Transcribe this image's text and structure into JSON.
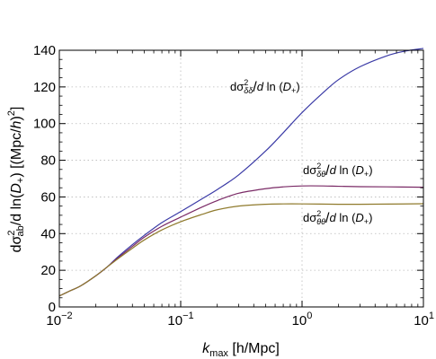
{
  "chart_data": {
    "type": "line",
    "x_scale": "log",
    "y_scale": "linear",
    "xlim": [
      0.01,
      10
    ],
    "ylim": [
      0,
      140
    ],
    "grid": true,
    "x_ticks": [
      {
        "value": 0.01,
        "base": "10",
        "exp": "−2"
      },
      {
        "value": 0.1,
        "base": "10",
        "exp": "−1"
      },
      {
        "value": 1,
        "base": "10",
        "exp": "0"
      },
      {
        "value": 10,
        "base": "10",
        "exp": "1"
      }
    ],
    "y_ticks": [
      0,
      20,
      40,
      60,
      80,
      100,
      120,
      140
    ],
    "xlabel": {
      "main": "k",
      "sub": "max",
      "unit": " [h/Mpc]"
    },
    "ylabel": {
      "p1": "dσ",
      "sup1": "2",
      "sub1": "ab",
      "p2": "/d ln(",
      "p3": "D",
      "sub2": "+",
      "p4": ") [(Mpc/",
      "p5": "h",
      "p6": ")",
      "sup2": "2",
      "p7": "]"
    },
    "series": [
      {
        "key": "dd",
        "color": "#3a3aa6",
        "points": [
          [
            0.01,
            6
          ],
          [
            0.012,
            8.5
          ],
          [
            0.015,
            11.5
          ],
          [
            0.02,
            17
          ],
          [
            0.025,
            22
          ],
          [
            0.03,
            27
          ],
          [
            0.04,
            34
          ],
          [
            0.05,
            39
          ],
          [
            0.07,
            46
          ],
          [
            0.1,
            52
          ],
          [
            0.15,
            59
          ],
          [
            0.2,
            64
          ],
          [
            0.3,
            72
          ],
          [
            0.5,
            85
          ],
          [
            0.7,
            95
          ],
          [
            1,
            106
          ],
          [
            1.5,
            117
          ],
          [
            2,
            124
          ],
          [
            3,
            131
          ],
          [
            5,
            137
          ],
          [
            7,
            139.5
          ],
          [
            10,
            141
          ]
        ],
        "label": {
          "d": "dσ",
          "sup": "2",
          "sub": "δδ",
          "rest": "/",
          "dit": "d",
          "ln": " ln (",
          "D": "D",
          "Dsub": "+",
          "close": ")"
        }
      },
      {
        "key": "dt",
        "color": "#7a2a66",
        "points": [
          [
            0.01,
            6
          ],
          [
            0.012,
            8.5
          ],
          [
            0.015,
            11.5
          ],
          [
            0.02,
            17
          ],
          [
            0.025,
            22
          ],
          [
            0.03,
            26.5
          ],
          [
            0.04,
            33
          ],
          [
            0.05,
            38
          ],
          [
            0.07,
            44
          ],
          [
            0.1,
            49
          ],
          [
            0.15,
            54.5
          ],
          [
            0.2,
            58
          ],
          [
            0.3,
            62
          ],
          [
            0.5,
            64.5
          ],
          [
            0.7,
            65.5
          ],
          [
            1,
            66
          ],
          [
            1.5,
            66
          ],
          [
            2,
            65.8
          ],
          [
            3,
            65.6
          ],
          [
            5,
            65.5
          ],
          [
            10,
            65.3
          ]
        ],
        "label": {
          "d": "dσ",
          "sup": "2",
          "sub": "δθ",
          "rest": "/",
          "dit": "d",
          "ln": " ln (",
          "D": "D",
          "Dsub": "+",
          "close": ")"
        }
      },
      {
        "key": "tt",
        "color": "#8f7a2c",
        "points": [
          [
            0.01,
            6
          ],
          [
            0.012,
            8.5
          ],
          [
            0.015,
            11.5
          ],
          [
            0.02,
            17
          ],
          [
            0.025,
            22
          ],
          [
            0.03,
            26
          ],
          [
            0.04,
            32
          ],
          [
            0.05,
            36.5
          ],
          [
            0.07,
            42
          ],
          [
            0.1,
            46.5
          ],
          [
            0.15,
            50.5
          ],
          [
            0.2,
            53
          ],
          [
            0.3,
            55
          ],
          [
            0.5,
            56
          ],
          [
            0.7,
            56.2
          ],
          [
            1,
            56.2
          ],
          [
            2,
            56
          ],
          [
            3,
            56
          ],
          [
            5,
            56.1
          ],
          [
            10,
            56.3
          ]
        ],
        "label": {
          "d": "dσ",
          "sup": "2",
          "sub": "θθ",
          "rest": "/",
          "dit": "d",
          "ln": " ln (",
          "D": "D",
          "Dsub": "+",
          "close": ")"
        }
      }
    ]
  }
}
